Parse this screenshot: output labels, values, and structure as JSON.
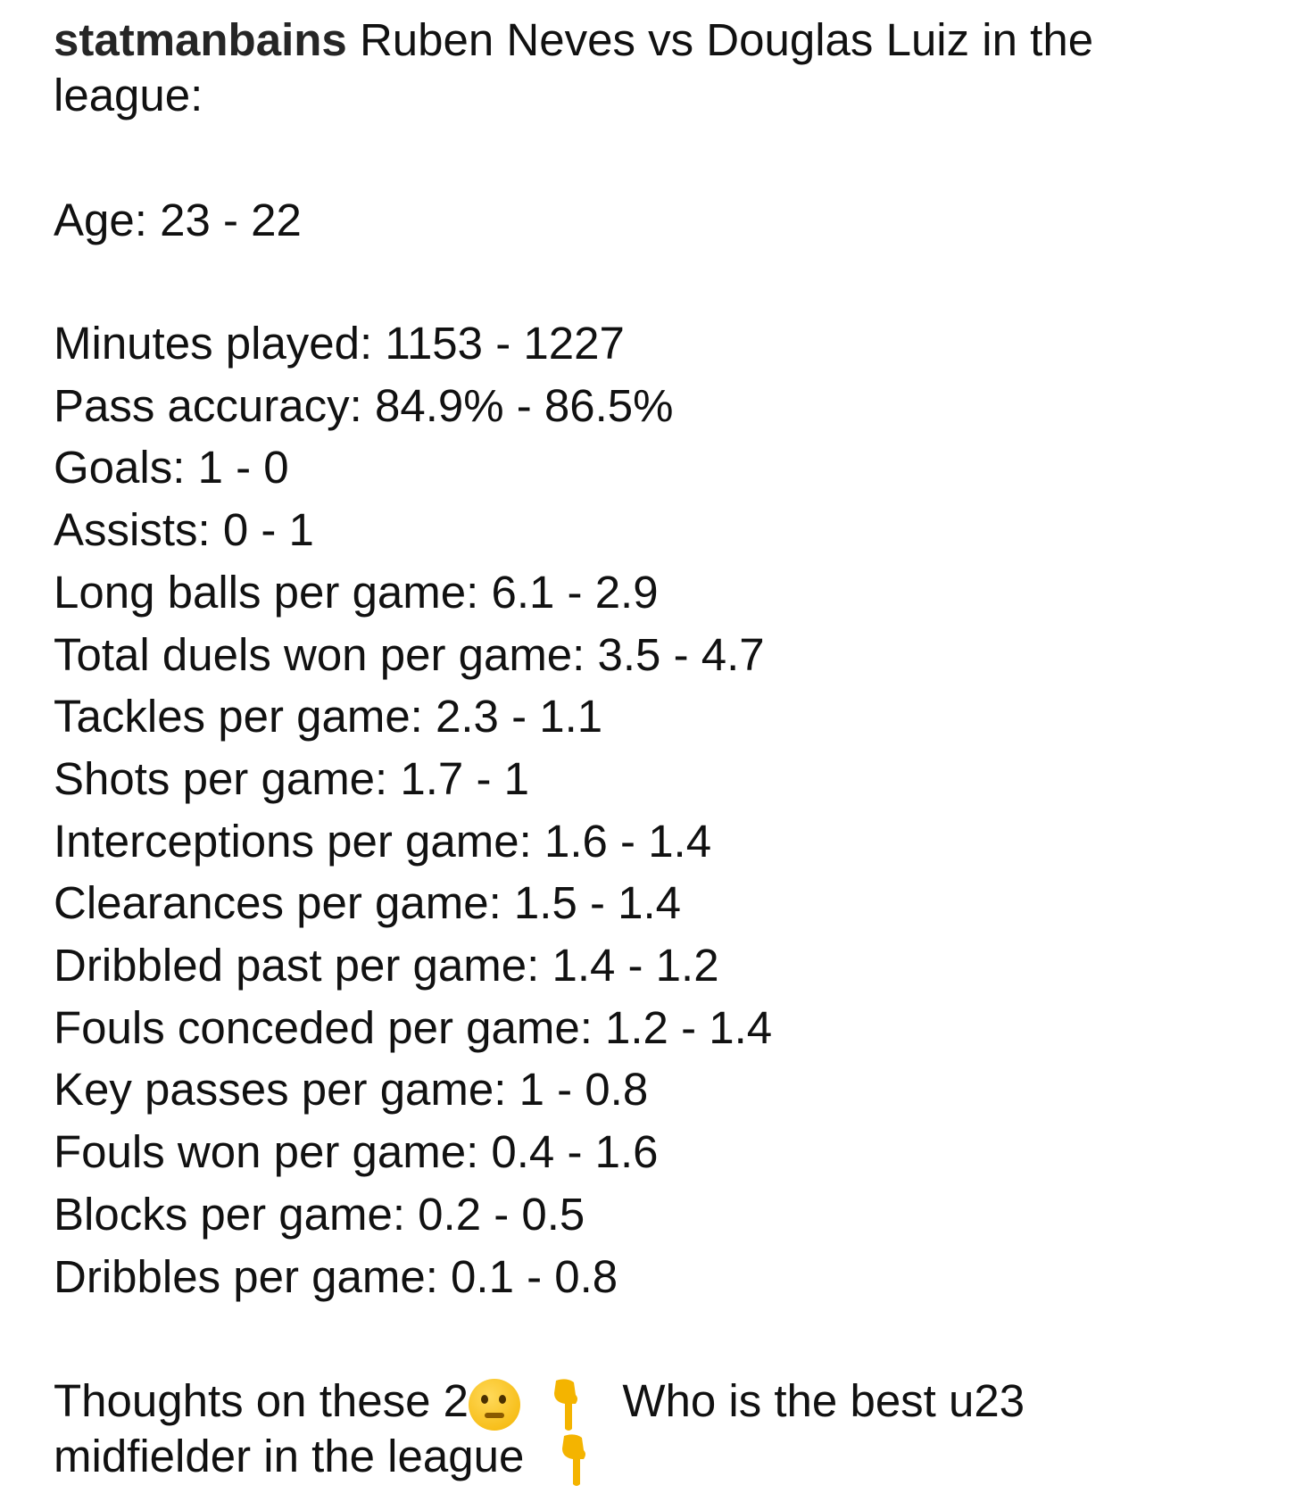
{
  "post": {
    "username": "statmanbains",
    "caption_line1": "Ruben Neves vs Douglas Luiz in the",
    "caption_line2": "league:",
    "age": "Age: 23 - 22",
    "stats": [
      "Minutes played: 1153 - 1227",
      "Pass accuracy: 84.9% - 86.5%",
      "Goals: 1 - 0",
      "Assists: 0 - 1",
      "Long balls per game: 6.1 - 2.9",
      "Total duels won per game: 3.5 - 4.7",
      "Tackles per game: 2.3 - 1.1",
      "Shots per game: 1.7 - 1",
      "Interceptions per game: 1.6 - 1.4",
      "Clearances per game: 1.5 - 1.4",
      "Dribbled past per game: 1.4 - 1.2",
      "Fouls conceded per game: 1.2 - 1.4",
      "Key passes per game: 1 - 0.8",
      "Fouls won per game: 0.4 - 1.6",
      "Blocks per game: 0.2 - 0.5",
      "Dribbles per game: 0.1 - 0.8"
    ],
    "closing_part1": "Thoughts on these 2",
    "closing_part2": "Who is the best u23",
    "closing_line2": "midfielder in the league",
    "emojis": [
      "thinking-face-icon",
      "pointing-down-icon",
      "pointing-down-icon"
    ],
    "emoji_color": "#f4b400"
  }
}
